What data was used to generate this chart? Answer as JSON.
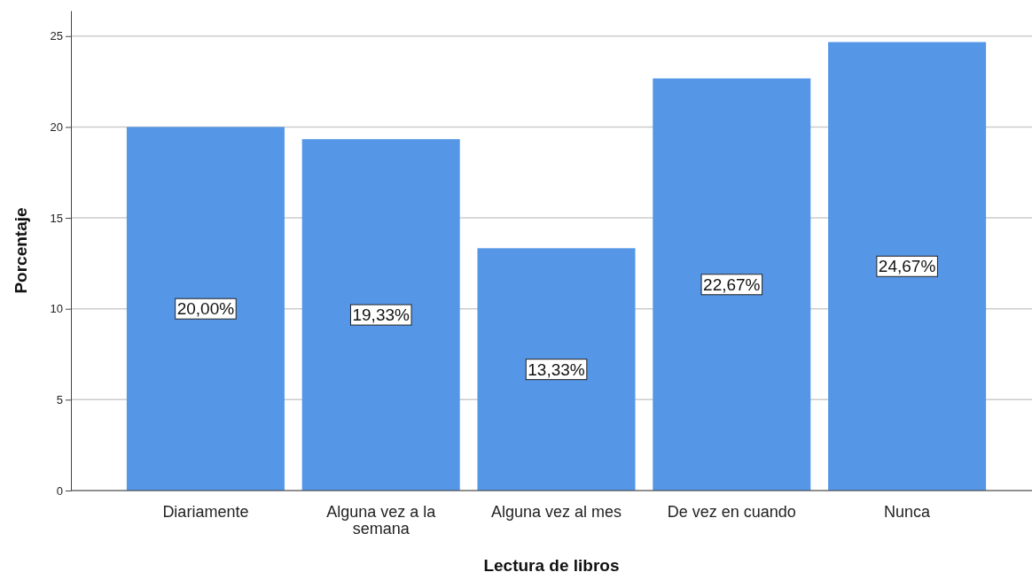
{
  "chart_data": {
    "type": "bar",
    "xlabel": "Lectura de libros",
    "ylabel": "Porcentaje",
    "categories": [
      "Diariamente",
      "Alguna vez a la semana",
      "Alguna vez al mes",
      "De vez en cuando",
      "Nunca"
    ],
    "values": [
      20.0,
      19.33,
      13.33,
      22.67,
      24.67
    ],
    "value_labels": [
      "20,00%",
      "19,33%",
      "13,33%",
      "22,67%",
      "24,67%"
    ],
    "color": "#5596e6",
    "ylim": [
      0,
      26.4
    ],
    "yticks": [
      0,
      5,
      10,
      15,
      20,
      25
    ],
    "grid": "y"
  }
}
